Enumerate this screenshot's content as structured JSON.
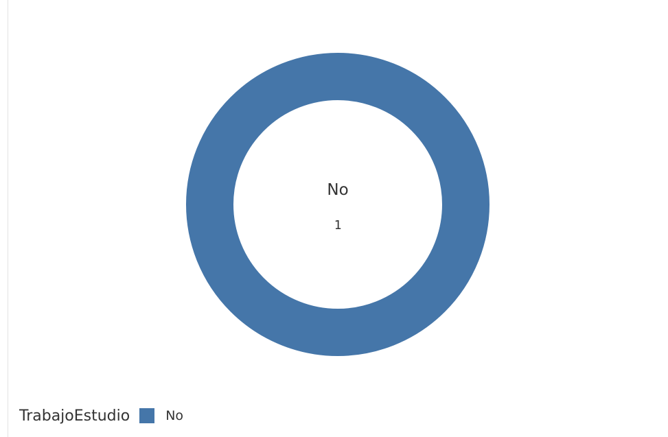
{
  "chart_data": {
    "type": "pie",
    "variant": "donut",
    "categories": [
      "No"
    ],
    "values": [
      1
    ],
    "colors": [
      "#4576a9"
    ],
    "center_label": "No",
    "center_value": "1",
    "legend": {
      "title": "TrabajoEstudio",
      "placement": "bottom-left",
      "entries": [
        {
          "label": "No",
          "color": "#4576a9"
        }
      ]
    }
  }
}
